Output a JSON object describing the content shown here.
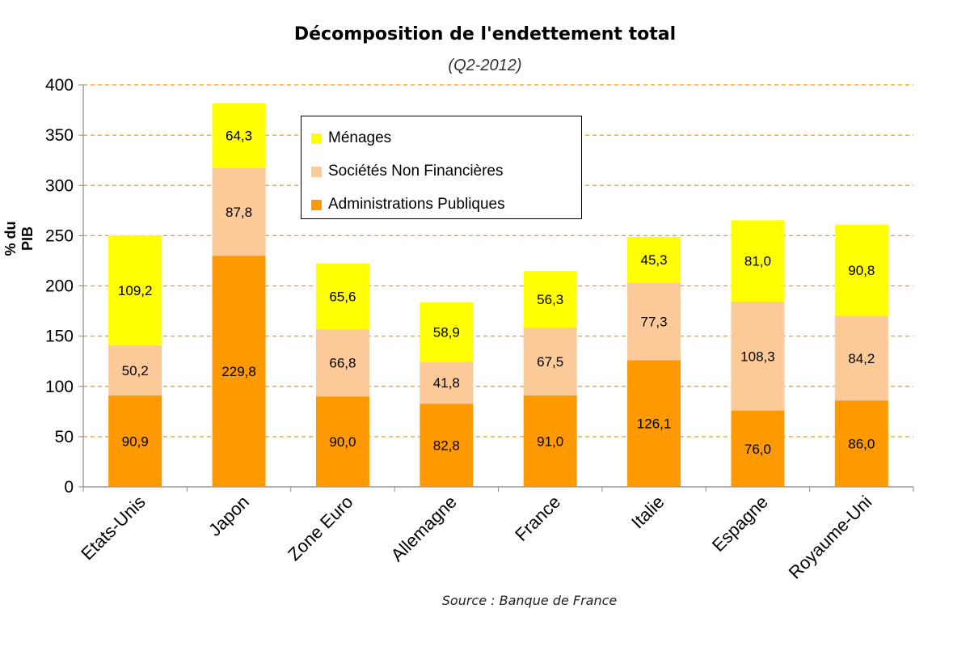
{
  "chart_data": {
    "type": "stacked-bar",
    "title": "Décomposition de l'endettement total",
    "subtitle": "(Q2-2012)",
    "ylabel": "% du PIB",
    "source": "Source : Banque de France",
    "ylim": [
      0,
      400
    ],
    "yticks": [
      0,
      50,
      100,
      150,
      200,
      250,
      300,
      350,
      400
    ],
    "grid": true,
    "legend_position": "top-center",
    "categories": [
      "Etats-Unis",
      "Japon",
      "Zone Euro",
      "Allemagne",
      "France",
      "Italie",
      "Espagne",
      "Royaume-Uni"
    ],
    "series": [
      {
        "name": "Administrations Publiques",
        "color": "#ff9900",
        "values": [
          90.9,
          229.8,
          90.0,
          82.8,
          91.0,
          126.1,
          76.0,
          86.0
        ],
        "labels": [
          "90,9",
          "229,8",
          "90,0",
          "82,8",
          "91,0",
          "126,1",
          "76,0",
          "86,0"
        ]
      },
      {
        "name": "Sociétés Non Financières",
        "color": "#fcc998",
        "values": [
          50.2,
          87.8,
          66.8,
          41.8,
          67.5,
          77.3,
          108.3,
          84.2
        ],
        "labels": [
          "50,2",
          "87,8",
          "66,8",
          "41,8",
          "67,5",
          "77,3",
          "108,3",
          "84,2"
        ]
      },
      {
        "name": "Ménages",
        "color": "#ffff00",
        "values": [
          109.2,
          64.3,
          65.6,
          58.9,
          56.3,
          45.3,
          81.0,
          90.8
        ],
        "labels": [
          "109,2",
          "64,3",
          "65,6",
          "58,9",
          "56,3",
          "45,3",
          "81,0",
          "90,8"
        ]
      }
    ],
    "legend_order": [
      2,
      1,
      0
    ]
  }
}
